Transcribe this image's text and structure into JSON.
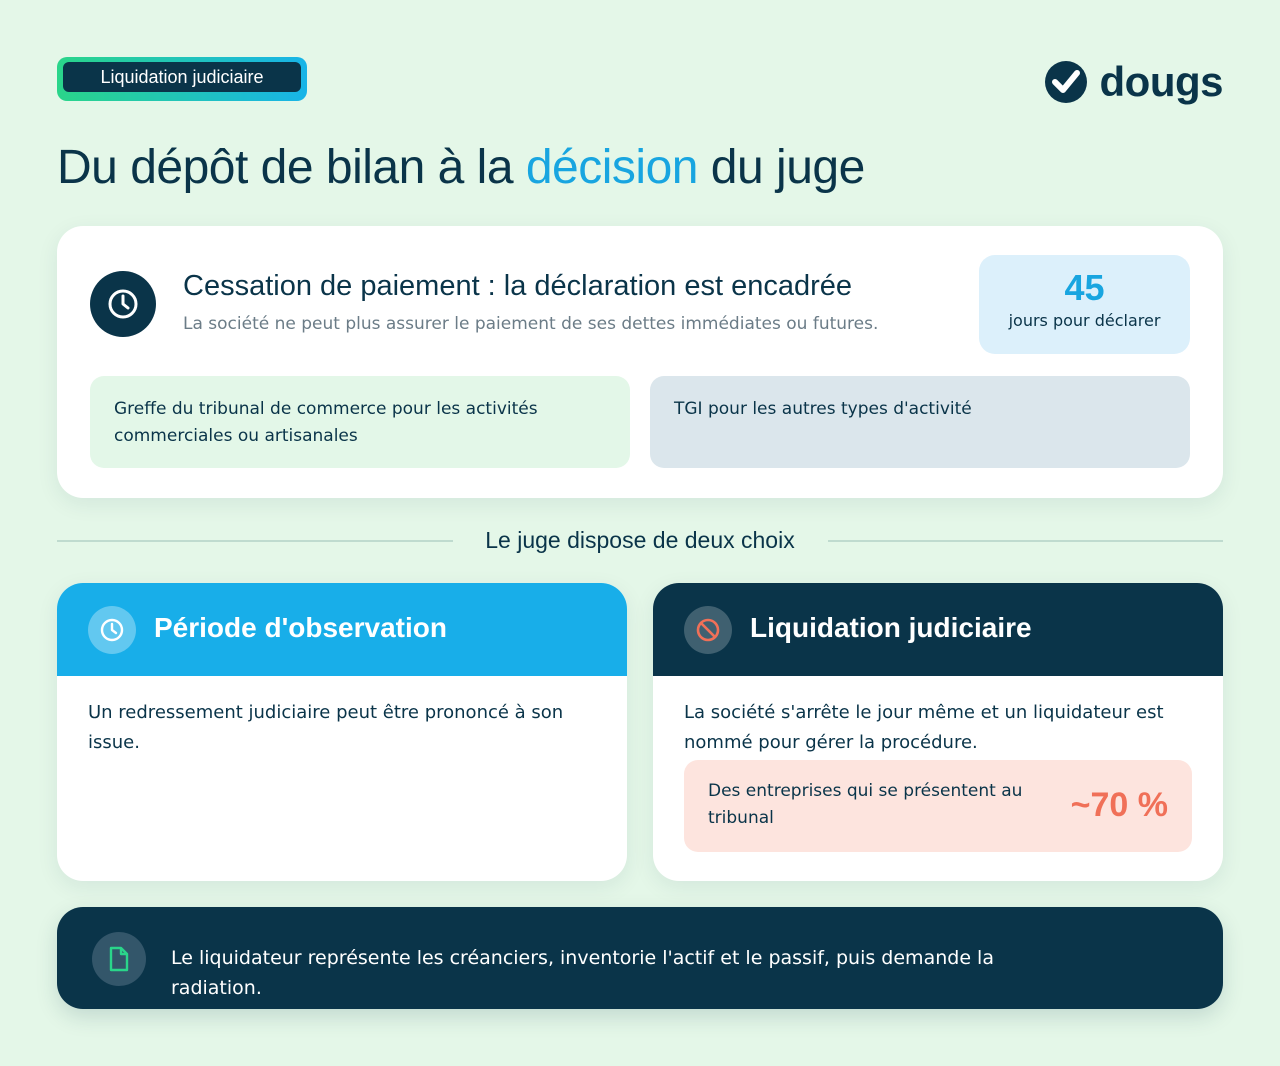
{
  "tag": {
    "label": "Liquidation judiciaire"
  },
  "logo": {
    "text": "dougs",
    "icon": "check-circle-icon"
  },
  "title": {
    "part1": "Du dépôt de bilan à la ",
    "accent": "décision",
    "part2": " du juge"
  },
  "colors": {
    "navy": "#0a3449",
    "accent_blue": "#18a5e0",
    "green": "#2ad58a",
    "coral": "#f07058",
    "background": "#e4f7e8"
  },
  "cessation": {
    "icon": "clock-icon",
    "title": "Cessation de paiement : la déclaration est encadrée",
    "subtitle": "La société ne peut plus assurer le paiement de ses dettes immédiates ou futures.",
    "stat": {
      "value": "45",
      "label": "jours pour déclarer"
    },
    "boxes": [
      "Greffe du tribunal de commerce pour les activités commerciales ou artisanales",
      "TGI pour les autres types d'activité"
    ]
  },
  "divider": {
    "label": "Le juge dispose de deux choix"
  },
  "choices": {
    "observation": {
      "icon": "clock-icon",
      "title": "Période d'observation",
      "text": "Un redressement judiciaire peut être prononcé à son issue."
    },
    "liquidation": {
      "icon": "prohibited-icon",
      "title": "Liquidation judiciaire",
      "text": "La société s'arrête le jour même et un liquidateur est nommé pour gérer la procédure.",
      "stat": {
        "label": "Des entreprises qui se présentent au tribunal",
        "value": "~70 %"
      }
    }
  },
  "footer": {
    "icon": "document-icon",
    "text": "Le liquidateur représente les créanciers, inventorie l'actif et le passif, puis demande la radiation."
  }
}
